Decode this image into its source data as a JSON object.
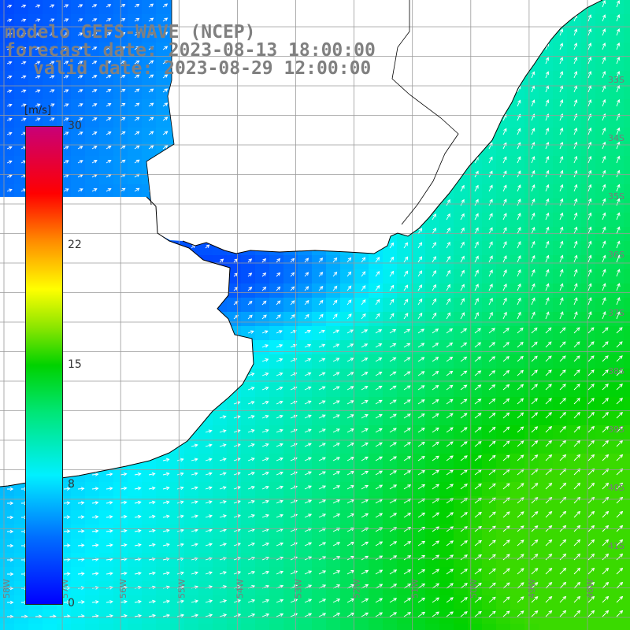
{
  "title": {
    "line1": "modelo GEFS-WAVE (NCEP)",
    "line2": "forecast date: 2023-08-13 18:00:00",
    "line3": "valid date: 2023-08-29 12:00:00"
  },
  "colorbar": {
    "unit": "[m/s]",
    "ticks": [
      "30",
      "22",
      "15",
      "8",
      "0"
    ],
    "range": [
      0,
      30
    ]
  },
  "grid": {
    "lat_labels": [
      "33S",
      "34S",
      "35S",
      "36S",
      "37S",
      "38S",
      "39S",
      "40S",
      "41S"
    ],
    "lon_labels": [
      "58W",
      "57W",
      "56W",
      "55W",
      "54W",
      "53W",
      "52W",
      "51W",
      "50W",
      "49W",
      "48W"
    ]
  },
  "colors": {
    "land": "#ffffff",
    "coast": "#000000",
    "grid_line": "#9a9a9a",
    "arrow": "#ffffff",
    "title": "#808080"
  }
}
